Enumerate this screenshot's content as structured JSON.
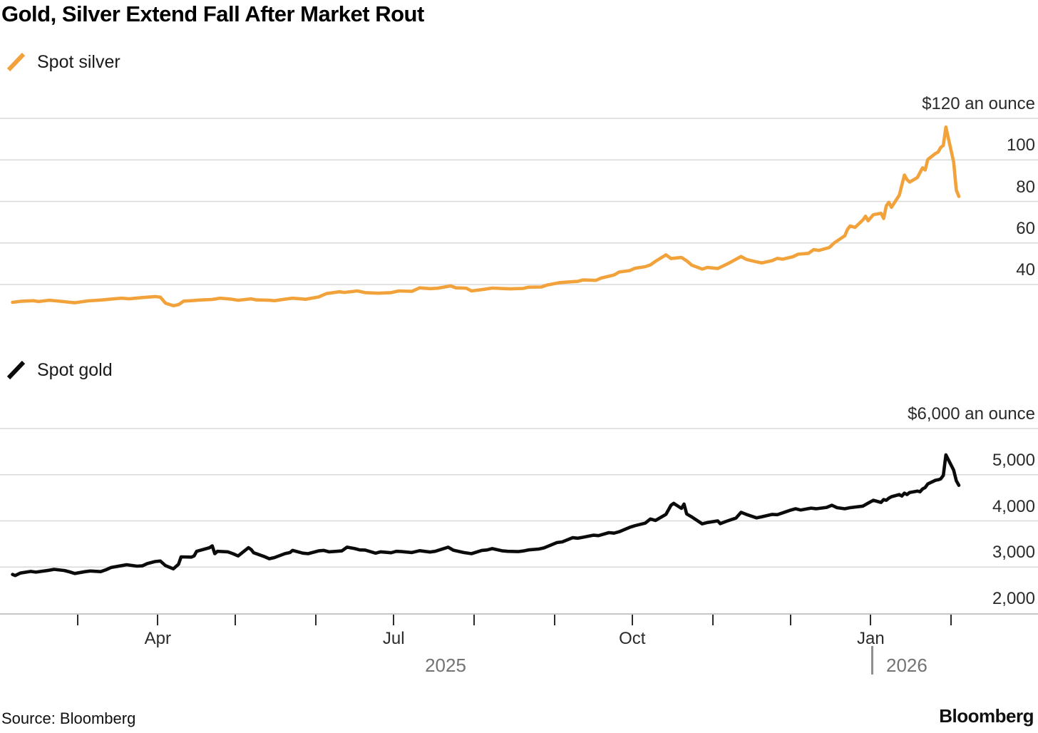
{
  "title": "Gold, Silver Extend Fall After Market Rout",
  "source_note": "Source: Bloomberg",
  "brand": "Bloomberg",
  "colors": {
    "silver_line": "#F2A23A",
    "gold_line": "#0b0b0b",
    "grid": "#d8d8d8",
    "axis_line": "#c7c7c7",
    "tick": "#2b2b2b",
    "month_label": "#2b2b2b",
    "year_label": "#737373"
  },
  "legends": [
    {
      "label": "Spot silver",
      "color": "#F2A23A"
    },
    {
      "label": "Spot gold",
      "color": "#0b0b0b"
    }
  ],
  "x_axis": {
    "start": "2025-02-03",
    "end": "2026-02-04",
    "tick_interval": "month",
    "month_labels": [
      {
        "label": "Apr",
        "date": "2025-04-01"
      },
      {
        "label": "Jul",
        "date": "2025-07-01"
      },
      {
        "label": "Oct",
        "date": "2025-10-01"
      },
      {
        "label": "Jan",
        "date": "2026-01-01"
      }
    ],
    "year_labels": [
      {
        "label": "2025",
        "divider": false
      },
      {
        "label": "2026",
        "divider": true
      }
    ]
  },
  "chart_data": [
    {
      "type": "line",
      "name": "Spot silver",
      "unit": "USD per ounce",
      "ytick_values": [
        120,
        100,
        80,
        60,
        40
      ],
      "ytick_labels": [
        "$120 an ounce",
        "100",
        "80",
        "60",
        "40"
      ],
      "legend_position": "top-left",
      "grid": true,
      "data": [
        [
          "2025-02-04",
          31.4
        ],
        [
          "2025-02-07",
          31.9
        ],
        [
          "2025-02-12",
          32.2
        ],
        [
          "2025-02-14",
          31.8
        ],
        [
          "2025-02-18",
          32.4
        ],
        [
          "2025-02-21",
          32.1
        ],
        [
          "2025-02-25",
          31.6
        ],
        [
          "2025-02-28",
          31.2
        ],
        [
          "2025-03-05",
          32.1
        ],
        [
          "2025-03-10",
          32.5
        ],
        [
          "2025-03-14",
          33.0
        ],
        [
          "2025-03-18",
          33.4
        ],
        [
          "2025-03-21",
          33.1
        ],
        [
          "2025-03-26",
          33.7
        ],
        [
          "2025-03-31",
          34.2
        ],
        [
          "2025-04-02",
          33.9
        ],
        [
          "2025-04-04",
          31.0
        ],
        [
          "2025-04-07",
          29.8
        ],
        [
          "2025-04-09",
          30.3
        ],
        [
          "2025-04-11",
          32.0
        ],
        [
          "2025-04-15",
          32.3
        ],
        [
          "2025-04-17",
          32.5
        ],
        [
          "2025-04-22",
          32.8
        ],
        [
          "2025-04-25",
          33.4
        ],
        [
          "2025-04-29",
          33.0
        ],
        [
          "2025-05-02",
          32.4
        ],
        [
          "2025-05-07",
          33.1
        ],
        [
          "2025-05-09",
          32.6
        ],
        [
          "2025-05-14",
          32.4
        ],
        [
          "2025-05-16",
          32.2
        ],
        [
          "2025-05-21",
          33.1
        ],
        [
          "2025-05-23",
          33.4
        ],
        [
          "2025-05-28",
          32.9
        ],
        [
          "2025-06-02",
          34.0
        ],
        [
          "2025-06-05",
          35.6
        ],
        [
          "2025-06-10",
          36.5
        ],
        [
          "2025-06-12",
          36.2
        ],
        [
          "2025-06-17",
          36.9
        ],
        [
          "2025-06-20",
          36.1
        ],
        [
          "2025-06-25",
          35.8
        ],
        [
          "2025-06-30",
          36.1
        ],
        [
          "2025-07-03",
          36.9
        ],
        [
          "2025-07-08",
          36.7
        ],
        [
          "2025-07-11",
          38.4
        ],
        [
          "2025-07-15",
          38.0
        ],
        [
          "2025-07-18",
          38.2
        ],
        [
          "2025-07-23",
          39.3
        ],
        [
          "2025-07-25",
          38.4
        ],
        [
          "2025-07-29",
          38.2
        ],
        [
          "2025-07-31",
          36.9
        ],
        [
          "2025-08-05",
          37.7
        ],
        [
          "2025-08-08",
          38.3
        ],
        [
          "2025-08-13",
          38.0
        ],
        [
          "2025-08-15",
          37.9
        ],
        [
          "2025-08-20",
          38.1
        ],
        [
          "2025-08-22",
          38.7
        ],
        [
          "2025-08-27",
          38.8
        ],
        [
          "2025-08-29",
          39.7
        ],
        [
          "2025-09-03",
          40.9
        ],
        [
          "2025-09-05",
          41.1
        ],
        [
          "2025-09-10",
          41.5
        ],
        [
          "2025-09-12",
          42.2
        ],
        [
          "2025-09-17",
          42.0
        ],
        [
          "2025-09-19",
          43.1
        ],
        [
          "2025-09-24",
          44.6
        ],
        [
          "2025-09-26",
          46.0
        ],
        [
          "2025-09-30",
          46.7
        ],
        [
          "2025-10-02",
          47.8
        ],
        [
          "2025-10-06",
          48.6
        ],
        [
          "2025-10-08",
          49.4
        ],
        [
          "2025-10-10",
          51.2
        ],
        [
          "2025-10-14",
          54.3
        ],
        [
          "2025-10-16",
          52.5
        ],
        [
          "2025-10-20",
          53.0
        ],
        [
          "2025-10-22",
          51.4
        ],
        [
          "2025-10-24",
          49.3
        ],
        [
          "2025-10-28",
          47.4
        ],
        [
          "2025-10-30",
          48.2
        ],
        [
          "2025-11-03",
          47.7
        ],
        [
          "2025-11-05",
          48.9
        ],
        [
          "2025-11-07",
          50.1
        ],
        [
          "2025-11-12",
          53.5
        ],
        [
          "2025-11-14",
          52.1
        ],
        [
          "2025-11-18",
          50.9
        ],
        [
          "2025-11-20",
          50.4
        ],
        [
          "2025-11-24",
          51.5
        ],
        [
          "2025-11-26",
          52.6
        ],
        [
          "2025-11-28",
          52.2
        ],
        [
          "2025-12-02",
          53.4
        ],
        [
          "2025-12-04",
          54.6
        ],
        [
          "2025-12-08",
          55.0
        ],
        [
          "2025-12-10",
          56.8
        ],
        [
          "2025-12-12",
          56.4
        ],
        [
          "2025-12-16",
          57.8
        ],
        [
          "2025-12-18",
          60.1
        ],
        [
          "2025-12-22",
          63.5
        ],
        [
          "2025-12-23",
          66.4
        ],
        [
          "2025-12-24",
          68.2
        ],
        [
          "2025-12-26",
          67.5
        ],
        [
          "2025-12-29",
          71.1
        ],
        [
          "2025-12-30",
          72.9
        ],
        [
          "2025-12-31",
          70.7
        ],
        [
          "2026-01-02",
          73.6
        ],
        [
          "2026-01-05",
          74.3
        ],
        [
          "2026-01-06",
          71.8
        ],
        [
          "2026-01-07",
          77.9
        ],
        [
          "2026-01-08",
          79.6
        ],
        [
          "2026-01-09",
          77.2
        ],
        [
          "2026-01-12",
          83.0
        ],
        [
          "2026-01-14",
          92.7
        ],
        [
          "2026-01-15",
          90.5
        ],
        [
          "2026-01-16",
          89.3
        ],
        [
          "2026-01-19",
          91.5
        ],
        [
          "2026-01-20",
          93.9
        ],
        [
          "2026-01-21",
          96.2
        ],
        [
          "2026-01-22",
          95.1
        ],
        [
          "2026-01-23",
          100.2
        ],
        [
          "2026-01-26",
          103.1
        ],
        [
          "2026-01-27",
          103.8
        ],
        [
          "2026-01-28",
          106.0
        ],
        [
          "2026-01-29",
          107.0
        ],
        [
          "2026-01-30",
          115.8
        ],
        [
          "2026-02-02",
          99.0
        ],
        [
          "2026-02-03",
          85.5
        ],
        [
          "2026-02-04",
          82.4
        ]
      ]
    },
    {
      "type": "line",
      "name": "Spot gold",
      "unit": "USD per ounce",
      "ytick_values": [
        6000,
        5000,
        4000,
        3000,
        2000
      ],
      "ytick_labels": [
        "$6,000 an ounce",
        "5,000",
        "4,000",
        "3,000",
        "2,000"
      ],
      "legend_position": "top-left",
      "grid": true,
      "data": [
        [
          "2025-02-04",
          2840
        ],
        [
          "2025-02-05",
          2815
        ],
        [
          "2025-02-07",
          2870
        ],
        [
          "2025-02-11",
          2905
        ],
        [
          "2025-02-13",
          2890
        ],
        [
          "2025-02-18",
          2930
        ],
        [
          "2025-02-20",
          2950
        ],
        [
          "2025-02-24",
          2925
        ],
        [
          "2025-02-26",
          2895
        ],
        [
          "2025-02-28",
          2860
        ],
        [
          "2025-03-04",
          2900
        ],
        [
          "2025-03-06",
          2915
        ],
        [
          "2025-03-10",
          2900
        ],
        [
          "2025-03-12",
          2940
        ],
        [
          "2025-03-14",
          2990
        ],
        [
          "2025-03-18",
          3030
        ],
        [
          "2025-03-20",
          3050
        ],
        [
          "2025-03-24",
          3020
        ],
        [
          "2025-03-26",
          3025
        ],
        [
          "2025-03-28",
          3075
        ],
        [
          "2025-03-31",
          3120
        ],
        [
          "2025-04-02",
          3130
        ],
        [
          "2025-04-04",
          3030
        ],
        [
          "2025-04-07",
          2960
        ],
        [
          "2025-04-09",
          3060
        ],
        [
          "2025-04-10",
          3220
        ],
        [
          "2025-04-14",
          3215
        ],
        [
          "2025-04-15",
          3240
        ],
        [
          "2025-04-16",
          3340
        ],
        [
          "2025-04-21",
          3420
        ],
        [
          "2025-04-22",
          3460
        ],
        [
          "2025-04-23",
          3290
        ],
        [
          "2025-04-24",
          3340
        ],
        [
          "2025-04-28",
          3330
        ],
        [
          "2025-04-30",
          3290
        ],
        [
          "2025-05-02",
          3240
        ],
        [
          "2025-05-06",
          3420
        ],
        [
          "2025-05-07",
          3380
        ],
        [
          "2025-05-08",
          3310
        ],
        [
          "2025-05-12",
          3230
        ],
        [
          "2025-05-14",
          3180
        ],
        [
          "2025-05-16",
          3205
        ],
        [
          "2025-05-20",
          3290
        ],
        [
          "2025-05-22",
          3315
        ],
        [
          "2025-05-23",
          3360
        ],
        [
          "2025-05-27",
          3300
        ],
        [
          "2025-05-29",
          3290
        ],
        [
          "2025-06-02",
          3350
        ],
        [
          "2025-06-04",
          3360
        ],
        [
          "2025-06-06",
          3330
        ],
        [
          "2025-06-09",
          3340
        ],
        [
          "2025-06-11",
          3350
        ],
        [
          "2025-06-13",
          3430
        ],
        [
          "2025-06-16",
          3400
        ],
        [
          "2025-06-18",
          3370
        ],
        [
          "2025-06-20",
          3368
        ],
        [
          "2025-06-24",
          3300
        ],
        [
          "2025-06-26",
          3330
        ],
        [
          "2025-06-30",
          3310
        ],
        [
          "2025-07-02",
          3340
        ],
        [
          "2025-07-04",
          3335
        ],
        [
          "2025-07-08",
          3315
        ],
        [
          "2025-07-11",
          3355
        ],
        [
          "2025-07-15",
          3325
        ],
        [
          "2025-07-17",
          3340
        ],
        [
          "2025-07-22",
          3430
        ],
        [
          "2025-07-24",
          3365
        ],
        [
          "2025-07-28",
          3315
        ],
        [
          "2025-07-31",
          3290
        ],
        [
          "2025-08-04",
          3360
        ],
        [
          "2025-08-06",
          3370
        ],
        [
          "2025-08-08",
          3400
        ],
        [
          "2025-08-12",
          3350
        ],
        [
          "2025-08-14",
          3340
        ],
        [
          "2025-08-18",
          3335
        ],
        [
          "2025-08-20",
          3348
        ],
        [
          "2025-08-22",
          3372
        ],
        [
          "2025-08-26",
          3390
        ],
        [
          "2025-08-28",
          3415
        ],
        [
          "2025-09-02",
          3530
        ],
        [
          "2025-09-04",
          3545
        ],
        [
          "2025-09-08",
          3635
        ],
        [
          "2025-09-10",
          3625
        ],
        [
          "2025-09-12",
          3645
        ],
        [
          "2025-09-16",
          3690
        ],
        [
          "2025-09-18",
          3680
        ],
        [
          "2025-09-22",
          3745
        ],
        [
          "2025-09-24",
          3735
        ],
        [
          "2025-09-26",
          3765
        ],
        [
          "2025-09-30",
          3860
        ],
        [
          "2025-10-02",
          3895
        ],
        [
          "2025-10-06",
          3950
        ],
        [
          "2025-10-08",
          4040
        ],
        [
          "2025-10-10",
          4010
        ],
        [
          "2025-10-14",
          4140
        ],
        [
          "2025-10-16",
          4340
        ],
        [
          "2025-10-17",
          4380
        ],
        [
          "2025-10-20",
          4270
        ],
        [
          "2025-10-21",
          4365
        ],
        [
          "2025-10-22",
          4150
        ],
        [
          "2025-10-24",
          4085
        ],
        [
          "2025-10-28",
          3935
        ],
        [
          "2025-10-30",
          3965
        ],
        [
          "2025-11-03",
          4000
        ],
        [
          "2025-11-04",
          3940
        ],
        [
          "2025-11-06",
          3985
        ],
        [
          "2025-11-10",
          4060
        ],
        [
          "2025-11-12",
          4185
        ],
        [
          "2025-11-14",
          4140
        ],
        [
          "2025-11-18",
          4065
        ],
        [
          "2025-11-20",
          4090
        ],
        [
          "2025-11-24",
          4140
        ],
        [
          "2025-11-26",
          4135
        ],
        [
          "2025-12-01",
          4230
        ],
        [
          "2025-12-03",
          4262
        ],
        [
          "2025-12-05",
          4235
        ],
        [
          "2025-12-09",
          4277
        ],
        [
          "2025-12-11",
          4262
        ],
        [
          "2025-12-15",
          4292
        ],
        [
          "2025-12-17",
          4338
        ],
        [
          "2025-12-19",
          4285
        ],
        [
          "2025-12-22",
          4262
        ],
        [
          "2025-12-24",
          4285
        ],
        [
          "2025-12-29",
          4320
        ],
        [
          "2025-12-31",
          4385
        ],
        [
          "2026-01-02",
          4446
        ],
        [
          "2026-01-05",
          4400
        ],
        [
          "2026-01-06",
          4462
        ],
        [
          "2026-01-07",
          4446
        ],
        [
          "2026-01-08",
          4492
        ],
        [
          "2026-01-09",
          4523
        ],
        [
          "2026-01-12",
          4570
        ],
        [
          "2026-01-13",
          4538
        ],
        [
          "2026-01-14",
          4600
        ],
        [
          "2026-01-15",
          4570
        ],
        [
          "2026-01-16",
          4615
        ],
        [
          "2026-01-19",
          4646
        ],
        [
          "2026-01-20",
          4630
        ],
        [
          "2026-01-21",
          4692
        ],
        [
          "2026-01-22",
          4723
        ],
        [
          "2026-01-23",
          4800
        ],
        [
          "2026-01-26",
          4880
        ],
        [
          "2026-01-27",
          4890
        ],
        [
          "2026-01-28",
          4910
        ],
        [
          "2026-01-29",
          4985
        ],
        [
          "2026-01-30",
          5430
        ],
        [
          "2026-02-02",
          5100
        ],
        [
          "2026-02-03",
          4870
        ],
        [
          "2026-02-04",
          4770
        ]
      ]
    }
  ]
}
